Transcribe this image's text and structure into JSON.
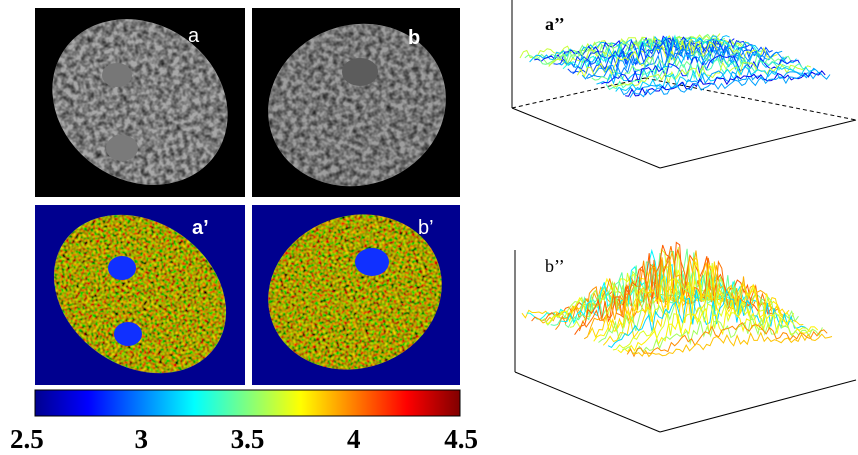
{
  "panels": {
    "a": "a",
    "b": "b",
    "a_prime": "a’",
    "b_prime": "b’",
    "a_dprime": "a’’",
    "b_dprime": "b’’"
  },
  "colorbar": {
    "range": [
      2.5,
      4.5
    ],
    "ticks": [
      2.5,
      3,
      3.5,
      4,
      4.5
    ]
  }
}
